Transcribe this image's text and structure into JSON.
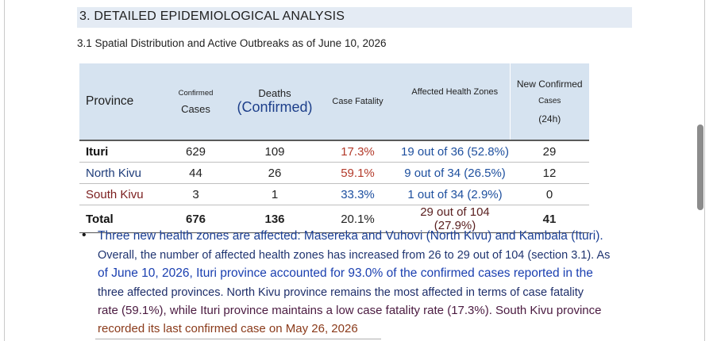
{
  "section": {
    "title": "3. DETAILED EPIDEMIOLOGICAL ANALYSIS"
  },
  "subsection": {
    "title": "3.1 Spatial Distribution and Active Outbreaks as of June 10, 2026"
  },
  "table": {
    "headers": {
      "province": "Province",
      "confirmed_top": "Confirmed",
      "confirmed_bottom": "Cases",
      "deaths_top": "Deaths",
      "deaths_bottom": "(Confirmed)",
      "fatality": "Case Fatality",
      "zones": "Affected Health Zones",
      "new_1": "New Confirmed",
      "new_2": "Cases",
      "new_3": "(24h)"
    },
    "rows": [
      {
        "province": "Ituri",
        "cases": "629",
        "deaths": "109",
        "fatality": "17.3%",
        "zones": "19 out of 36 (52.8%)",
        "new": "29"
      },
      {
        "province": "North Kivu",
        "cases": "44",
        "deaths": "26",
        "fatality": "59.1%",
        "zones": "9 out of 34 (26.5%)",
        "new": "12"
      },
      {
        "province": "South Kivu",
        "cases": "3",
        "deaths": "1",
        "fatality": "33.3%",
        "zones": "1 out of 34 (2.9%)",
        "new": "0"
      }
    ],
    "total": {
      "label": "Total",
      "cases": "676",
      "deaths": "136",
      "fatality": "20.1%",
      "zones": "29 out of 104 (27.9%)",
      "new": "41"
    }
  },
  "bullet": {
    "symbol": "•",
    "lines": [
      "Three new health zones are affected: Masereka and Vuhovi (North Kivu) and Kambala (Ituri).",
      "Overall, the number of affected health zones has increased from 26 to 29 out of 104 (section 3.1). As",
      "of June 10, 2026, Ituri province accounted for 93.0% of the confirmed cases reported in the",
      "three affected provinces. North Kivu province remains the most affected in terms of case fatality",
      "rate (59.1%), while Ituri province maintains a low case fatality rate (17.3%). South Kivu province",
      "recorded its last confirmed case on May 26, 2026"
    ]
  }
}
